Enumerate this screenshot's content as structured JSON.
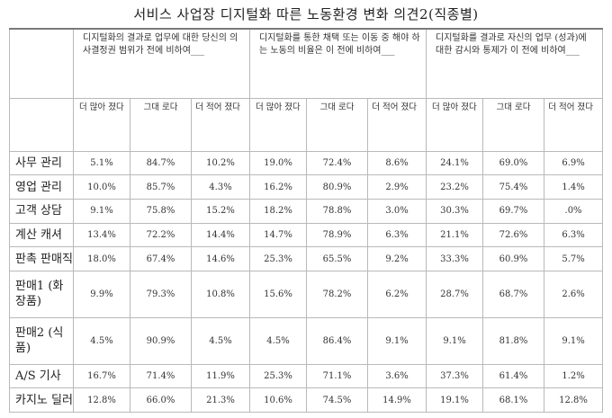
{
  "title": "서비스 사업장 디지털화 따른 노동환경 변화 의견2(직종별)",
  "groups": [
    "디지털화의 결과로 업무에 대한 당신의 의사결정권 범위가 전에 비하여___",
    "디지털화를 통한 채택 또는 이동 중 해야 하는 노동의 비율은 이 전에 비하여___",
    "디지털화를 결과로 자신의 업무 (성과)에 대한 감시와 통제가 이 전에 비하여___"
  ],
  "subheaders": [
    "더 많아 졌다",
    "그대 로다",
    "더 적어 졌다"
  ],
  "rows": [
    {
      "label": "사무 관리",
      "values": [
        "5.1%",
        "84.7%",
        "10.2%",
        "19.0%",
        "72.4%",
        "8.6%",
        "24.1%",
        "69.0%",
        "6.9%"
      ]
    },
    {
      "label": "영업 관리",
      "values": [
        "10.0%",
        "85.7%",
        "4.3%",
        "16.2%",
        "80.9%",
        "2.9%",
        "23.2%",
        "75.4%",
        "1.4%"
      ]
    },
    {
      "label": "고객 상담",
      "values": [
        "9.1%",
        "75.8%",
        "15.2%",
        "18.2%",
        "78.8%",
        "3.0%",
        "30.3%",
        "69.7%",
        ".0%"
      ]
    },
    {
      "label": "계산 캐셔",
      "values": [
        "13.4%",
        "72.2%",
        "14.4%",
        "14.7%",
        "78.9%",
        "6.3%",
        "21.1%",
        "72.6%",
        "6.3%"
      ]
    },
    {
      "label": "판촉 판매직",
      "values": [
        "18.0%",
        "67.4%",
        "14.6%",
        "25.3%",
        "65.5%",
        "9.2%",
        "33.3%",
        "60.9%",
        "5.7%"
      ]
    },
    {
      "label": "판매1 (화장품)",
      "values": [
        "9.9%",
        "79.3%",
        "10.8%",
        "15.6%",
        "78.2%",
        "6.2%",
        "28.7%",
        "68.7%",
        "2.6%"
      ]
    },
    {
      "label": "판매2 (식품)",
      "values": [
        "4.5%",
        "90.9%",
        "4.5%",
        "4.5%",
        "86.4%",
        "9.1%",
        "9.1%",
        "81.8%",
        "9.1%"
      ]
    },
    {
      "label": "A/S 기사",
      "values": [
        "16.7%",
        "71.4%",
        "11.9%",
        "25.3%",
        "71.1%",
        "3.6%",
        "37.3%",
        "61.4%",
        "1.2%"
      ]
    },
    {
      "label": "카지노 딜러",
      "values": [
        "12.8%",
        "66.0%",
        "21.3%",
        "10.6%",
        "74.5%",
        "14.9%",
        "19.1%",
        "68.1%",
        "12.8%"
      ]
    }
  ]
}
